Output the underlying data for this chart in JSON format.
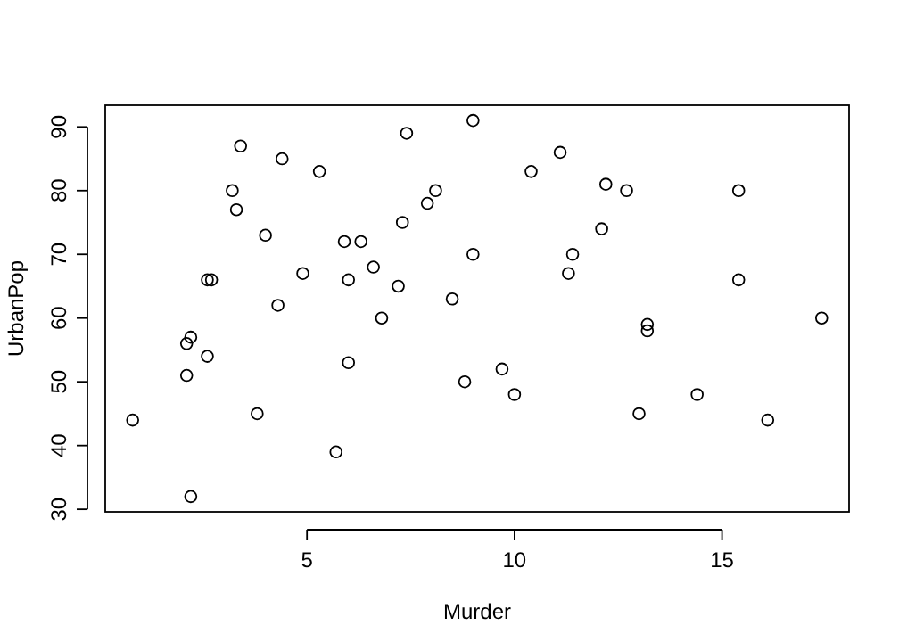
{
  "chart_data": {
    "type": "scatter",
    "xlabel": "Murder",
    "ylabel": "UrbanPop",
    "marker": "circle",
    "grid": false,
    "xlim": [
      0.14,
      18.06
    ],
    "ylim": [
      29.6,
      93.4
    ],
    "xticks": [
      5,
      10,
      15
    ],
    "yticks": [
      30,
      40,
      50,
      60,
      70,
      80,
      90
    ],
    "series": [
      {
        "color": "#000000",
        "x": [
          13.2,
          10.0,
          8.1,
          8.8,
          9.0,
          7.9,
          3.3,
          5.9,
          15.4,
          17.4,
          5.3,
          2.6,
          10.4,
          7.2,
          2.2,
          6.0,
          9.7,
          15.4,
          2.1,
          11.3,
          4.4,
          12.1,
          2.7,
          16.1,
          9.0,
          6.0,
          4.3,
          12.2,
          2.1,
          7.4,
          11.4,
          11.1,
          13.0,
          0.8,
          7.3,
          6.6,
          4.9,
          6.3,
          3.4,
          14.4,
          3.8,
          13.2,
          12.7,
          3.2,
          2.2,
          8.5,
          4.0,
          5.7,
          2.6,
          6.8
        ],
        "values": [
          58,
          48,
          80,
          50,
          91,
          78,
          77,
          72,
          80,
          60,
          83,
          54,
          83,
          65,
          57,
          66,
          52,
          66,
          51,
          67,
          85,
          74,
          66,
          44,
          70,
          53,
          62,
          81,
          56,
          89,
          70,
          86,
          45,
          44,
          75,
          68,
          67,
          72,
          87,
          48,
          45,
          59,
          80,
          80,
          32,
          63,
          73,
          39,
          66,
          60
        ]
      }
    ]
  }
}
